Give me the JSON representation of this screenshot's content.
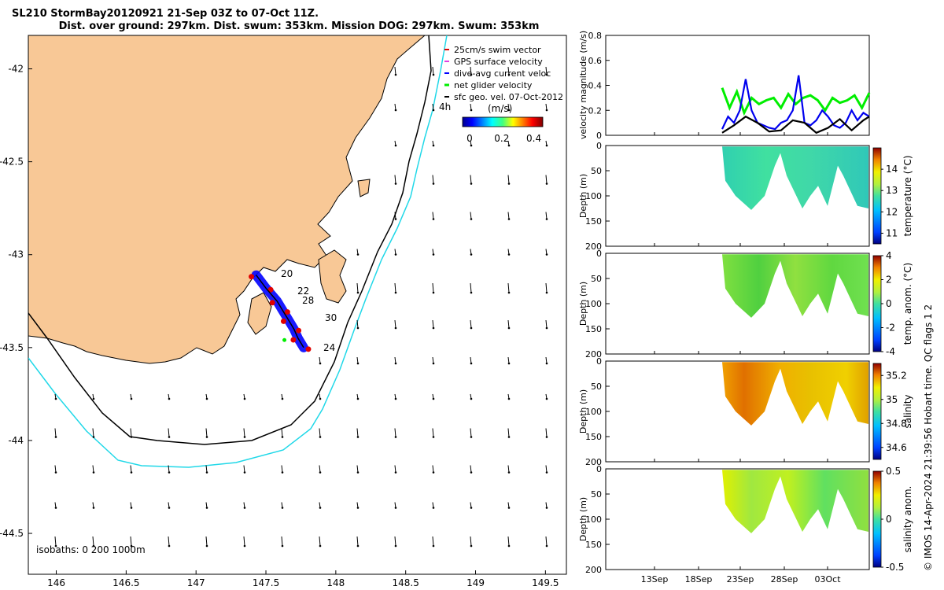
{
  "title_line1": "SL210 StormBay20120921 21-Sep 03Z to 07-Oct 11Z.",
  "title_line2": "Dist. over ground: 297km. Dist. swum: 353km. Mission DOG: 297km. Swum: 353km",
  "chart_data": [
    {
      "type": "scatter",
      "name": "glider-track-map",
      "x_ticks": [
        "146",
        "146.5",
        "147",
        "147.5",
        "148",
        "148.5",
        "149",
        "149.5"
      ],
      "y_ticks": [
        "-42",
        "-42.5",
        "-43",
        "-43.5",
        "-44",
        "-44.5"
      ],
      "xlim": [
        145.8,
        149.65
      ],
      "ylim": [
        -44.72,
        -41.82
      ],
      "legend": [
        "25cm/s swim vector",
        "GPS surface velocity",
        "dive-avg current veloc",
        "net glider velocity",
        "sfc geo. vel. 07-Oct-2012"
      ],
      "colorbar_label": "(m/s)",
      "colorbar_ticks": [
        "0",
        "0.2",
        "0.4"
      ],
      "contour_label": "4h",
      "isobaths_label": "isobaths: 0   200  1000m",
      "track_labels": [
        "20",
        "22",
        "28",
        "30",
        "24"
      ],
      "track_points": [
        [
          147.43,
          -43.11
        ],
        [
          147.5,
          -43.18
        ],
        [
          147.58,
          -43.25
        ],
        [
          147.62,
          -43.3
        ],
        [
          147.66,
          -43.35
        ],
        [
          147.7,
          -43.4
        ],
        [
          147.73,
          -43.45
        ],
        [
          147.77,
          -43.5
        ]
      ]
    },
    {
      "type": "line",
      "name": "velocity-magnitude",
      "ylabel": "velocity magnitude (m/s)",
      "ylim": [
        0,
        0.8
      ],
      "y_ticks": [
        "0",
        "0.2",
        "0.4",
        "0.6",
        "0.8"
      ],
      "series": [
        {
          "name": "net glider velocity",
          "color": "#00ee00",
          "x": [
            0,
            0.05,
            0.1,
            0.15,
            0.2,
            0.25,
            0.3,
            0.35,
            0.4,
            0.45,
            0.5,
            0.55,
            0.6,
            0.65,
            0.7,
            0.75,
            0.8,
            0.85,
            0.9,
            0.95,
            1
          ],
          "values": [
            0.38,
            0.22,
            0.35,
            0.18,
            0.3,
            0.25,
            0.28,
            0.3,
            0.22,
            0.33,
            0.25,
            0.3,
            0.32,
            0.28,
            0.2,
            0.3,
            0.26,
            0.28,
            0.32,
            0.22,
            0.34
          ]
        },
        {
          "name": "dive-avg current veloc",
          "color": "#0000ee",
          "x": [
            0,
            0.04,
            0.08,
            0.12,
            0.16,
            0.2,
            0.24,
            0.28,
            0.32,
            0.36,
            0.4,
            0.44,
            0.48,
            0.52,
            0.56,
            0.6,
            0.64,
            0.68,
            0.72,
            0.76,
            0.8,
            0.84,
            0.88,
            0.92,
            0.96,
            1
          ],
          "values": [
            0.05,
            0.15,
            0.1,
            0.2,
            0.45,
            0.2,
            0.1,
            0.08,
            0.06,
            0.05,
            0.1,
            0.12,
            0.2,
            0.48,
            0.1,
            0.08,
            0.12,
            0.2,
            0.15,
            0.08,
            0.06,
            0.1,
            0.2,
            0.12,
            0.18,
            0.15
          ]
        },
        {
          "name": "sfc geo. vel.",
          "color": "#000000",
          "x": [
            0,
            0.08,
            0.16,
            0.24,
            0.32,
            0.4,
            0.48,
            0.56,
            0.64,
            0.72,
            0.8,
            0.88,
            0.96,
            1
          ],
          "values": [
            0.02,
            0.08,
            0.15,
            0.1,
            0.03,
            0.04,
            0.12,
            0.1,
            0.02,
            0.06,
            0.13,
            0.04,
            0.12,
            0.15
          ]
        }
      ]
    },
    {
      "type": "heatmap",
      "name": "temperature-section",
      "ylabel": "Depth (m)",
      "y_ticks": [
        "0",
        "50",
        "100",
        "150",
        "200"
      ],
      "colorbar_label": "temperature (°C)",
      "colorbar_ticks": [
        "11",
        "12",
        "13",
        "14"
      ],
      "clim": [
        10.5,
        15
      ],
      "mean_value": 12.6
    },
    {
      "type": "heatmap",
      "name": "temperature-anomaly-section",
      "ylabel": "Depth (m)",
      "y_ticks": [
        "0",
        "50",
        "100",
        "150",
        "200"
      ],
      "colorbar_label": "temp. anom. (°C)",
      "colorbar_ticks": [
        "-4",
        "-2",
        "0",
        "2",
        "4"
      ],
      "clim": [
        -4,
        4
      ],
      "mean_value": 0.3
    },
    {
      "type": "heatmap",
      "name": "salinity-section",
      "ylabel": "Depth (m)",
      "y_ticks": [
        "0",
        "50",
        "100",
        "150",
        "200"
      ],
      "colorbar_label": "salinity",
      "colorbar_ticks": [
        "34.6",
        "34.8",
        "35",
        "35.2"
      ],
      "clim": [
        34.5,
        35.3
      ],
      "mean_value": 35.05
    },
    {
      "type": "heatmap",
      "name": "salinity-anomaly-section",
      "ylabel": "Depth (m)",
      "y_ticks": [
        "0",
        "50",
        "100",
        "150",
        "200"
      ],
      "colorbar_label": "salinity anom.",
      "colorbar_ticks": [
        "-0.5",
        "0",
        "0.5"
      ],
      "clim": [
        -0.5,
        0.5
      ],
      "mean_value": 0.1
    }
  ],
  "time_ticks": [
    "13Sep",
    "18Sep",
    "23Sep",
    "28Sep",
    "03Oct"
  ],
  "credit": "© IMOS 14-Apr-2024 21:39:56 Hobart time. QC flags 1  2"
}
